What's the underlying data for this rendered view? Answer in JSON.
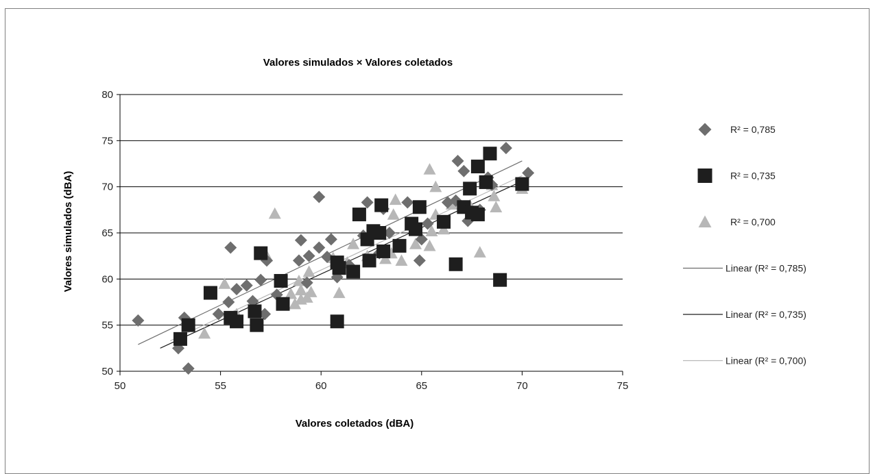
{
  "chart_data": {
    "type": "scatter",
    "title": "Valores simulados × Valores coletados",
    "xlabel": "Valores coletados (dBA)",
    "ylabel": "Valores simulados (dBA)",
    "xlim": [
      50,
      75
    ],
    "ylim": [
      50,
      80
    ],
    "xticks": [
      50,
      55,
      60,
      65,
      70,
      75
    ],
    "yticks": [
      50,
      55,
      60,
      65,
      70,
      75,
      80
    ],
    "grid": "horizontal",
    "legend_position": "right",
    "series": [
      {
        "name": "R² = 0,785",
        "marker": "diamond",
        "color": "#6e6e6e",
        "points": [
          [
            50.9,
            55.5
          ],
          [
            52.9,
            52.5
          ],
          [
            53.2,
            55.8
          ],
          [
            53.4,
            50.3
          ],
          [
            54.9,
            56.2
          ],
          [
            55.4,
            57.5
          ],
          [
            55.5,
            63.4
          ],
          [
            55.8,
            58.9
          ],
          [
            56.3,
            59.3
          ],
          [
            56.6,
            57.6
          ],
          [
            57.0,
            59.9
          ],
          [
            57.2,
            56.2
          ],
          [
            57.3,
            62.0
          ],
          [
            57.8,
            58.3
          ],
          [
            58.9,
            62.0
          ],
          [
            59.0,
            64.2
          ],
          [
            59.3,
            59.6
          ],
          [
            59.4,
            62.5
          ],
          [
            59.9,
            63.4
          ],
          [
            59.9,
            68.9
          ],
          [
            60.3,
            62.4
          ],
          [
            60.5,
            64.3
          ],
          [
            60.8,
            60.2
          ],
          [
            61.4,
            61.5
          ],
          [
            62.1,
            64.7
          ],
          [
            62.3,
            68.3
          ],
          [
            62.6,
            65.2
          ],
          [
            62.9,
            62.8
          ],
          [
            63.1,
            67.6
          ],
          [
            63.4,
            65.0
          ],
          [
            64.3,
            68.3
          ],
          [
            64.9,
            62.0
          ],
          [
            65.0,
            64.3
          ],
          [
            65.3,
            66.0
          ],
          [
            66.3,
            68.3
          ],
          [
            66.7,
            68.5
          ],
          [
            66.8,
            72.8
          ],
          [
            67.1,
            71.7
          ],
          [
            67.3,
            66.3
          ],
          [
            67.9,
            67.5
          ],
          [
            68.3,
            71.0
          ],
          [
            68.5,
            70.2
          ],
          [
            69.2,
            74.2
          ],
          [
            70.3,
            71.5
          ]
        ]
      },
      {
        "name": "R² = 0,735",
        "marker": "square",
        "color": "#1e1e1e",
        "points": [
          [
            53.0,
            53.5
          ],
          [
            53.4,
            55.0
          ],
          [
            54.5,
            58.5
          ],
          [
            55.5,
            55.8
          ],
          [
            55.8,
            55.4
          ],
          [
            56.7,
            56.5
          ],
          [
            56.8,
            55.0
          ],
          [
            57.0,
            62.8
          ],
          [
            58.0,
            59.8
          ],
          [
            58.1,
            57.3
          ],
          [
            60.8,
            55.4
          ],
          [
            60.8,
            61.8
          ],
          [
            60.9,
            61.2
          ],
          [
            61.6,
            60.8
          ],
          [
            61.9,
            67.0
          ],
          [
            62.3,
            64.3
          ],
          [
            62.4,
            62.0
          ],
          [
            62.6,
            65.2
          ],
          [
            62.9,
            65.0
          ],
          [
            63.0,
            68.0
          ],
          [
            63.1,
            63.0
          ],
          [
            63.9,
            63.6
          ],
          [
            64.5,
            66.0
          ],
          [
            64.7,
            65.4
          ],
          [
            64.9,
            67.8
          ],
          [
            66.1,
            66.2
          ],
          [
            66.7,
            61.6
          ],
          [
            67.1,
            67.8
          ],
          [
            67.4,
            69.8
          ],
          [
            67.5,
            67.2
          ],
          [
            67.8,
            67.0
          ],
          [
            67.8,
            72.2
          ],
          [
            68.2,
            70.5
          ],
          [
            68.4,
            73.6
          ],
          [
            68.9,
            59.9
          ],
          [
            70.0,
            70.3
          ]
        ]
      },
      {
        "name": "R² = 0,700",
        "marker": "triangle",
        "color": "#b7b7b7",
        "points": [
          [
            54.2,
            54.1
          ],
          [
            55.2,
            59.5
          ],
          [
            55.8,
            56.2
          ],
          [
            57.3,
            62.5
          ],
          [
            57.7,
            67.1
          ],
          [
            58.5,
            58.4
          ],
          [
            58.7,
            57.3
          ],
          [
            58.9,
            59.8
          ],
          [
            59.0,
            57.8
          ],
          [
            59.0,
            58.8
          ],
          [
            59.3,
            58.0
          ],
          [
            59.4,
            60.8
          ],
          [
            59.5,
            58.6
          ],
          [
            60.6,
            62.3
          ],
          [
            60.9,
            58.5
          ],
          [
            61.2,
            61.0
          ],
          [
            61.3,
            61.8
          ],
          [
            61.6,
            63.8
          ],
          [
            62.3,
            62.5
          ],
          [
            63.2,
            62.2
          ],
          [
            63.5,
            62.8
          ],
          [
            63.6,
            67.0
          ],
          [
            63.7,
            68.6
          ],
          [
            64.0,
            62.0
          ],
          [
            64.7,
            63.8
          ],
          [
            65.4,
            71.9
          ],
          [
            65.4,
            63.6
          ],
          [
            65.5,
            65.2
          ],
          [
            65.7,
            67.0
          ],
          [
            65.7,
            70.0
          ],
          [
            66.1,
            65.4
          ],
          [
            66.5,
            68.1
          ],
          [
            67.4,
            68.0
          ],
          [
            67.9,
            62.9
          ],
          [
            68.5,
            70.2
          ],
          [
            68.6,
            69.0
          ],
          [
            68.7,
            67.8
          ],
          [
            70.0,
            69.8
          ]
        ]
      }
    ],
    "trendlines": [
      {
        "name": "Linear (R² = 0,785)",
        "color": "#6e6e6e",
        "from": [
          50.9,
          52.9
        ],
        "to": [
          70.0,
          72.8
        ]
      },
      {
        "name": "Linear (R² = 0,735)",
        "color": "#1e1e1e",
        "from": [
          52.0,
          52.5
        ],
        "to": [
          70.0,
          70.6
        ]
      },
      {
        "name": "Linear (R² = 0,700)",
        "color": "#b7b7b7",
        "from": [
          52.5,
          53.3
        ],
        "to": [
          70.0,
          71.2
        ]
      }
    ]
  }
}
